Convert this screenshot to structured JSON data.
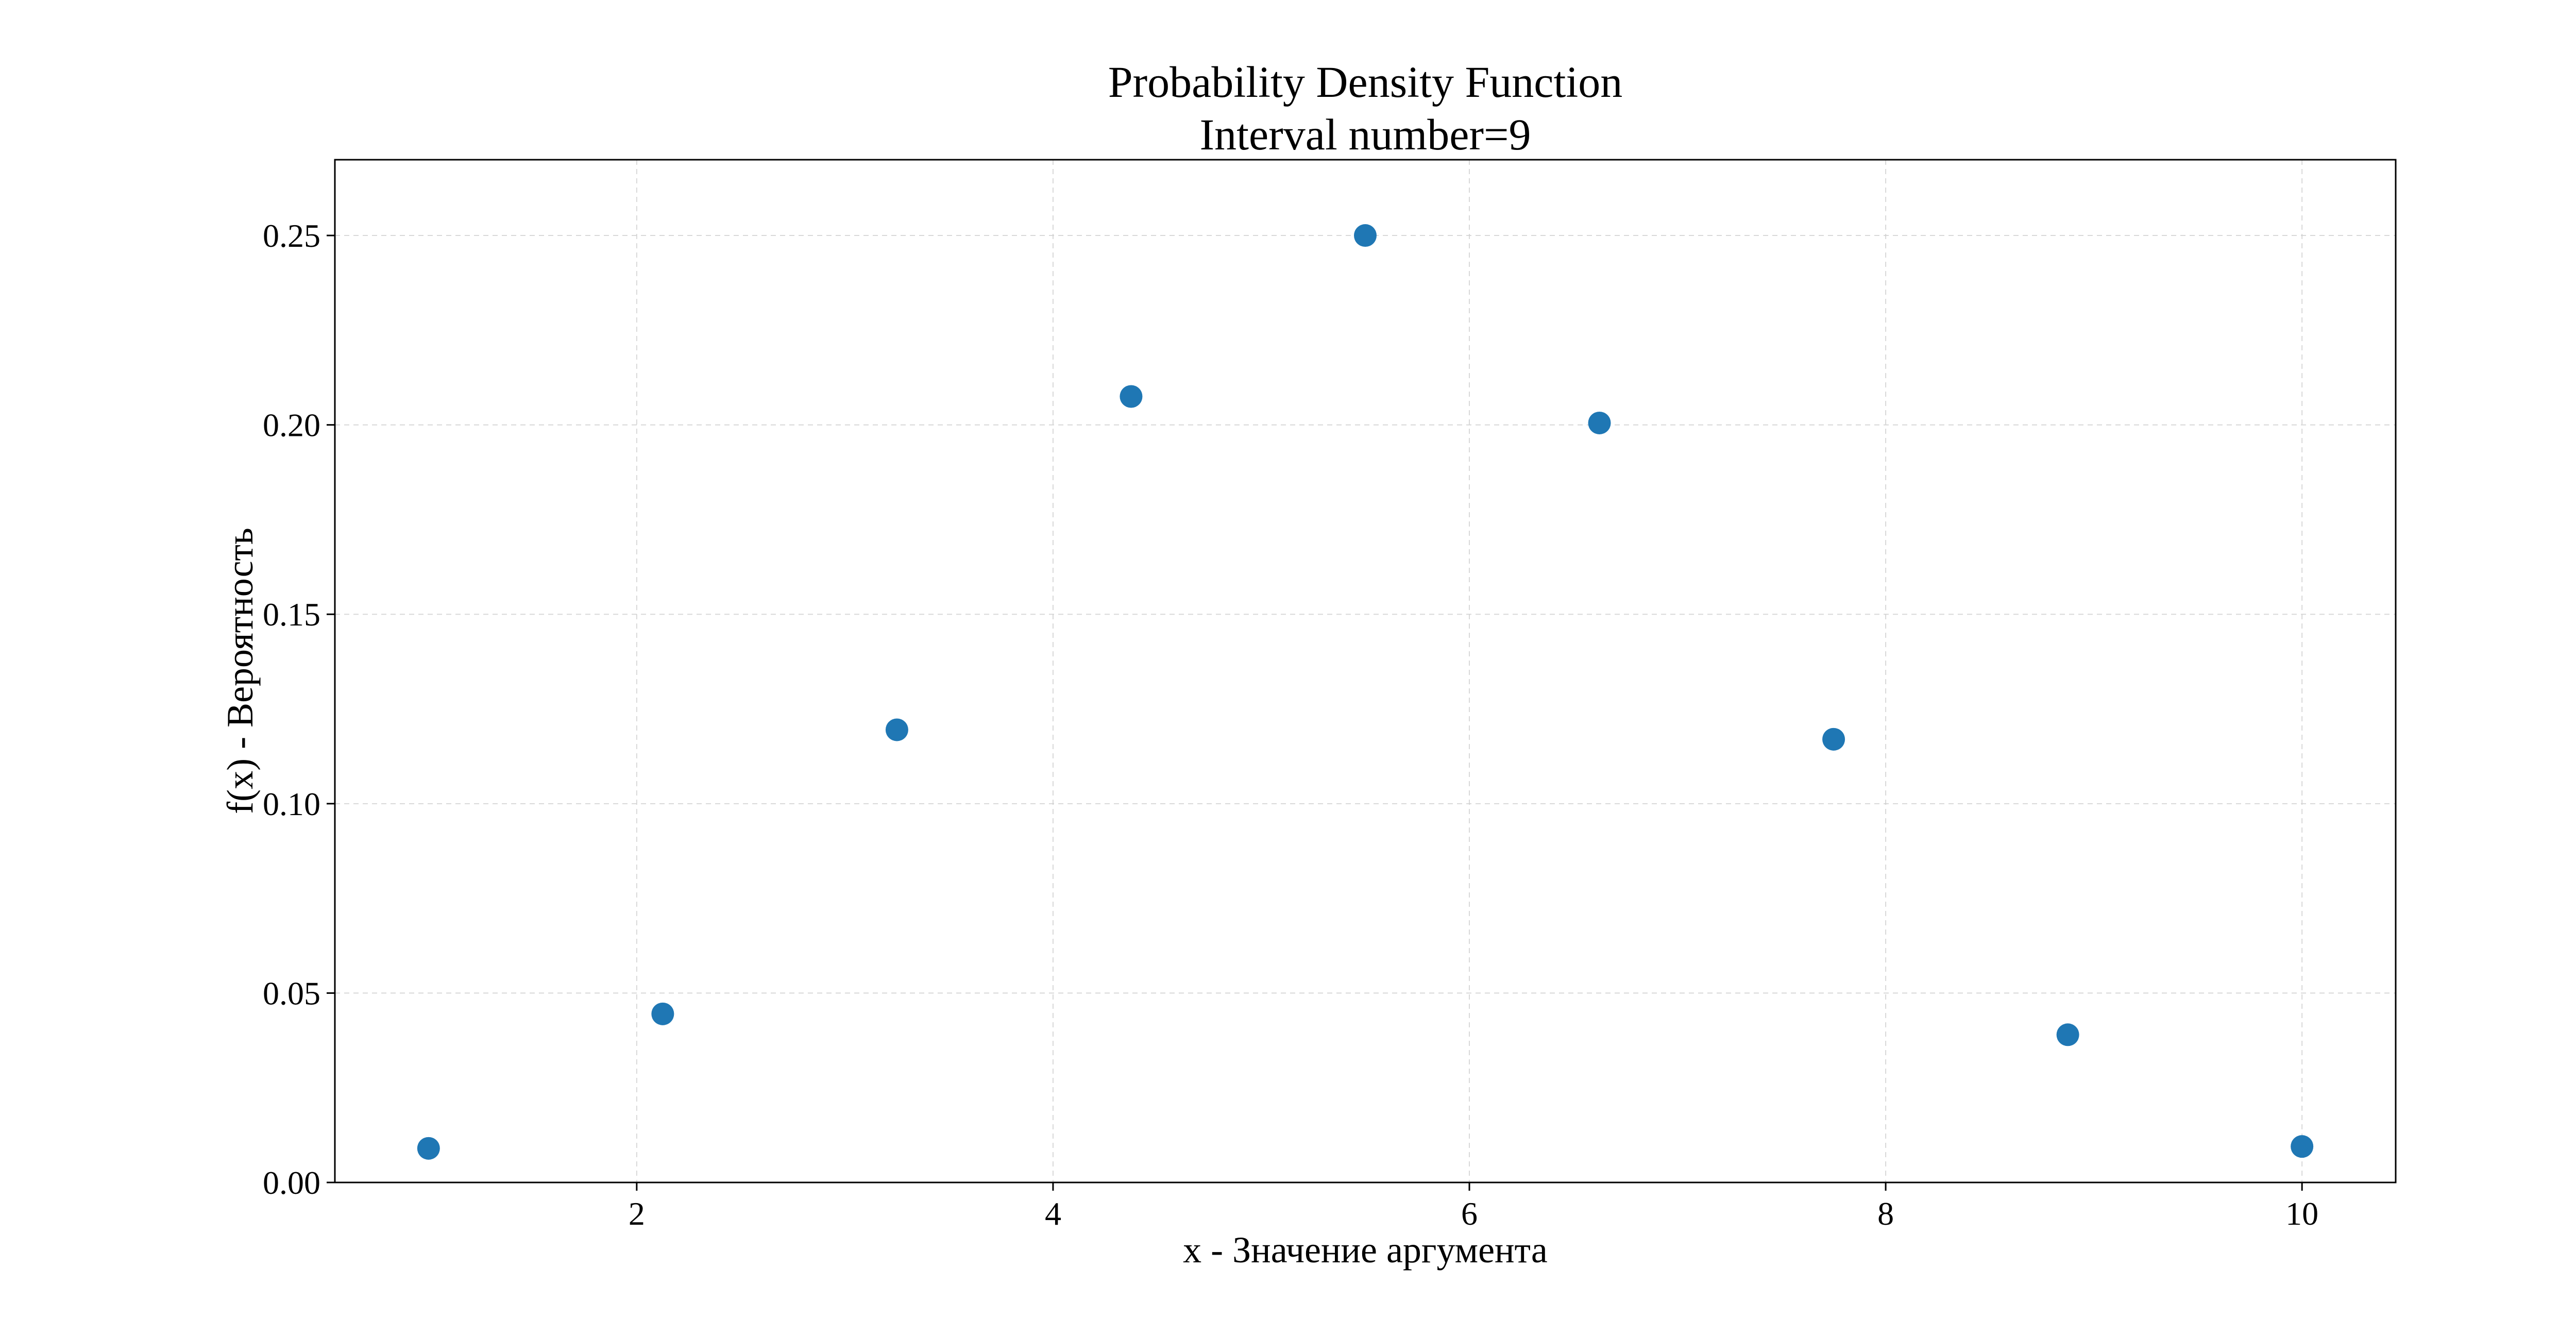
{
  "chart_data": {
    "type": "scatter",
    "title": "Probability Density Function",
    "subtitle": "Interval number=9",
    "xlabel": "x - Значение аргумента",
    "ylabel": "f(x) - Вероятность",
    "xlim": [
      0.55,
      10.45
    ],
    "ylim": [
      0.0,
      0.27
    ],
    "xticks": [
      2,
      4,
      6,
      8,
      10
    ],
    "xtick_labels": [
      "2",
      "4",
      "6",
      "8",
      "10"
    ],
    "yticks": [
      0.0,
      0.05,
      0.1,
      0.15,
      0.2,
      0.25
    ],
    "ytick_labels": [
      "0.00",
      "0.05",
      "0.10",
      "0.15",
      "0.20",
      "0.25"
    ],
    "grid": true,
    "marker_color": "#1f77b4",
    "series": [
      {
        "x": [
          1.0,
          2.125,
          3.25,
          4.375,
          5.5,
          6.625,
          7.75,
          8.875,
          10.0
        ],
        "values": [
          0.009,
          0.0445,
          0.1195,
          0.2075,
          0.25,
          0.2005,
          0.117,
          0.039,
          0.0095
        ]
      }
    ]
  }
}
